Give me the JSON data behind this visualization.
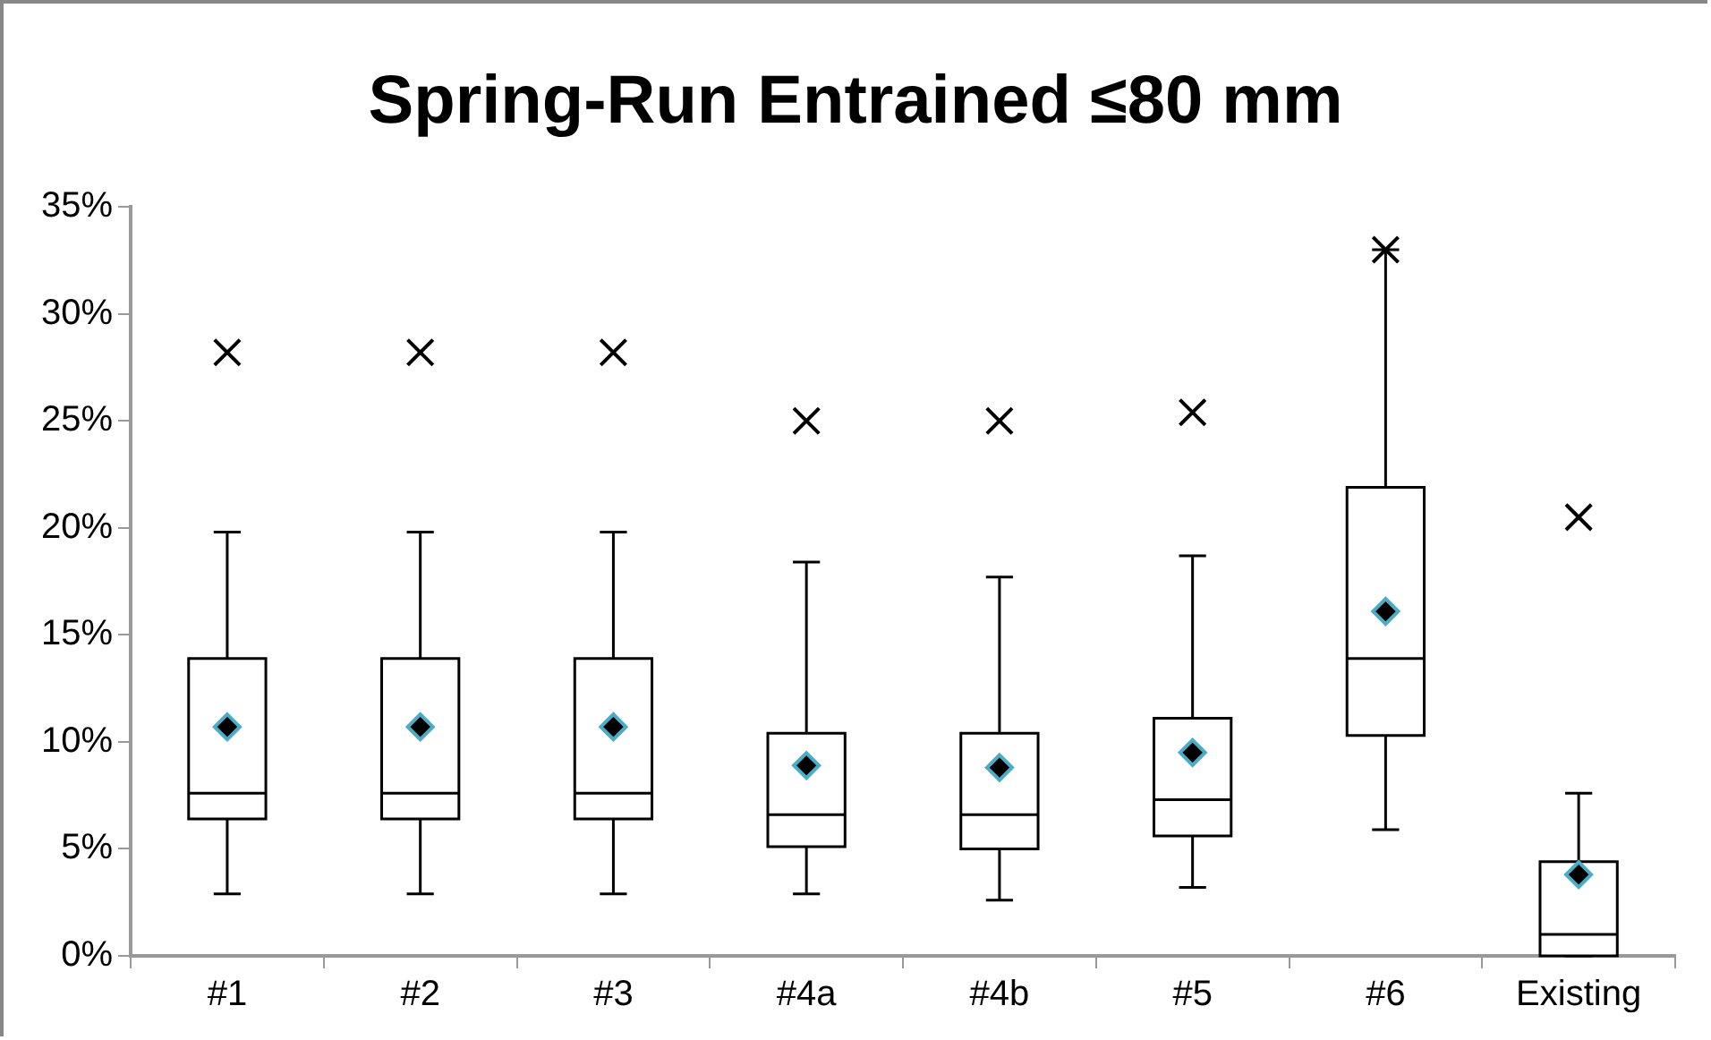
{
  "chart_data": {
    "type": "box",
    "title": "Spring-Run Entrained ≤80 mm",
    "categories": [
      "#1",
      "#2",
      "#3",
      "#4a",
      "#4b",
      "#5",
      "#6",
      "Existing"
    ],
    "boxes": [
      {
        "low": 2.9,
        "q1": 6.4,
        "median": 7.6,
        "q3": 13.9,
        "high": 19.8,
        "mean": 10.7,
        "outliers": [
          28.2
        ]
      },
      {
        "low": 2.9,
        "q1": 6.4,
        "median": 7.6,
        "q3": 13.9,
        "high": 19.8,
        "mean": 10.7,
        "outliers": [
          28.2
        ]
      },
      {
        "low": 2.9,
        "q1": 6.4,
        "median": 7.6,
        "q3": 13.9,
        "high": 19.8,
        "mean": 10.7,
        "outliers": [
          28.2
        ]
      },
      {
        "low": 2.9,
        "q1": 5.1,
        "median": 6.6,
        "q3": 10.4,
        "high": 18.4,
        "mean": 8.9,
        "outliers": [
          25.0
        ]
      },
      {
        "low": 2.6,
        "q1": 5.0,
        "median": 6.6,
        "q3": 10.4,
        "high": 17.7,
        "mean": 8.8,
        "outliers": [
          25.0
        ]
      },
      {
        "low": 3.2,
        "q1": 5.6,
        "median": 7.3,
        "q3": 11.1,
        "high": 18.7,
        "mean": 9.5,
        "outliers": [
          25.4
        ]
      },
      {
        "low": 5.9,
        "q1": 10.3,
        "median": 13.9,
        "q3": 21.9,
        "high": 33.0,
        "mean": 16.1,
        "outliers": [
          33.0
        ]
      },
      {
        "low": 0,
        "q1": 0,
        "median": 1.0,
        "q3": 4.4,
        "high": 7.6,
        "mean": 3.8,
        "outliers": [
          20.5
        ]
      }
    ],
    "ylim": [
      0,
      35
    ],
    "yticks": [
      {
        "value": 0,
        "label": "0%"
      },
      {
        "value": 5,
        "label": "5%"
      },
      {
        "value": 10,
        "label": "10%"
      },
      {
        "value": 15,
        "label": "15%"
      },
      {
        "value": 20,
        "label": "20%"
      },
      {
        "value": 25,
        "label": "25%"
      },
      {
        "value": 30,
        "label": "30%"
      },
      {
        "value": 35,
        "label": "35%"
      }
    ],
    "grid": false,
    "legend": false
  }
}
